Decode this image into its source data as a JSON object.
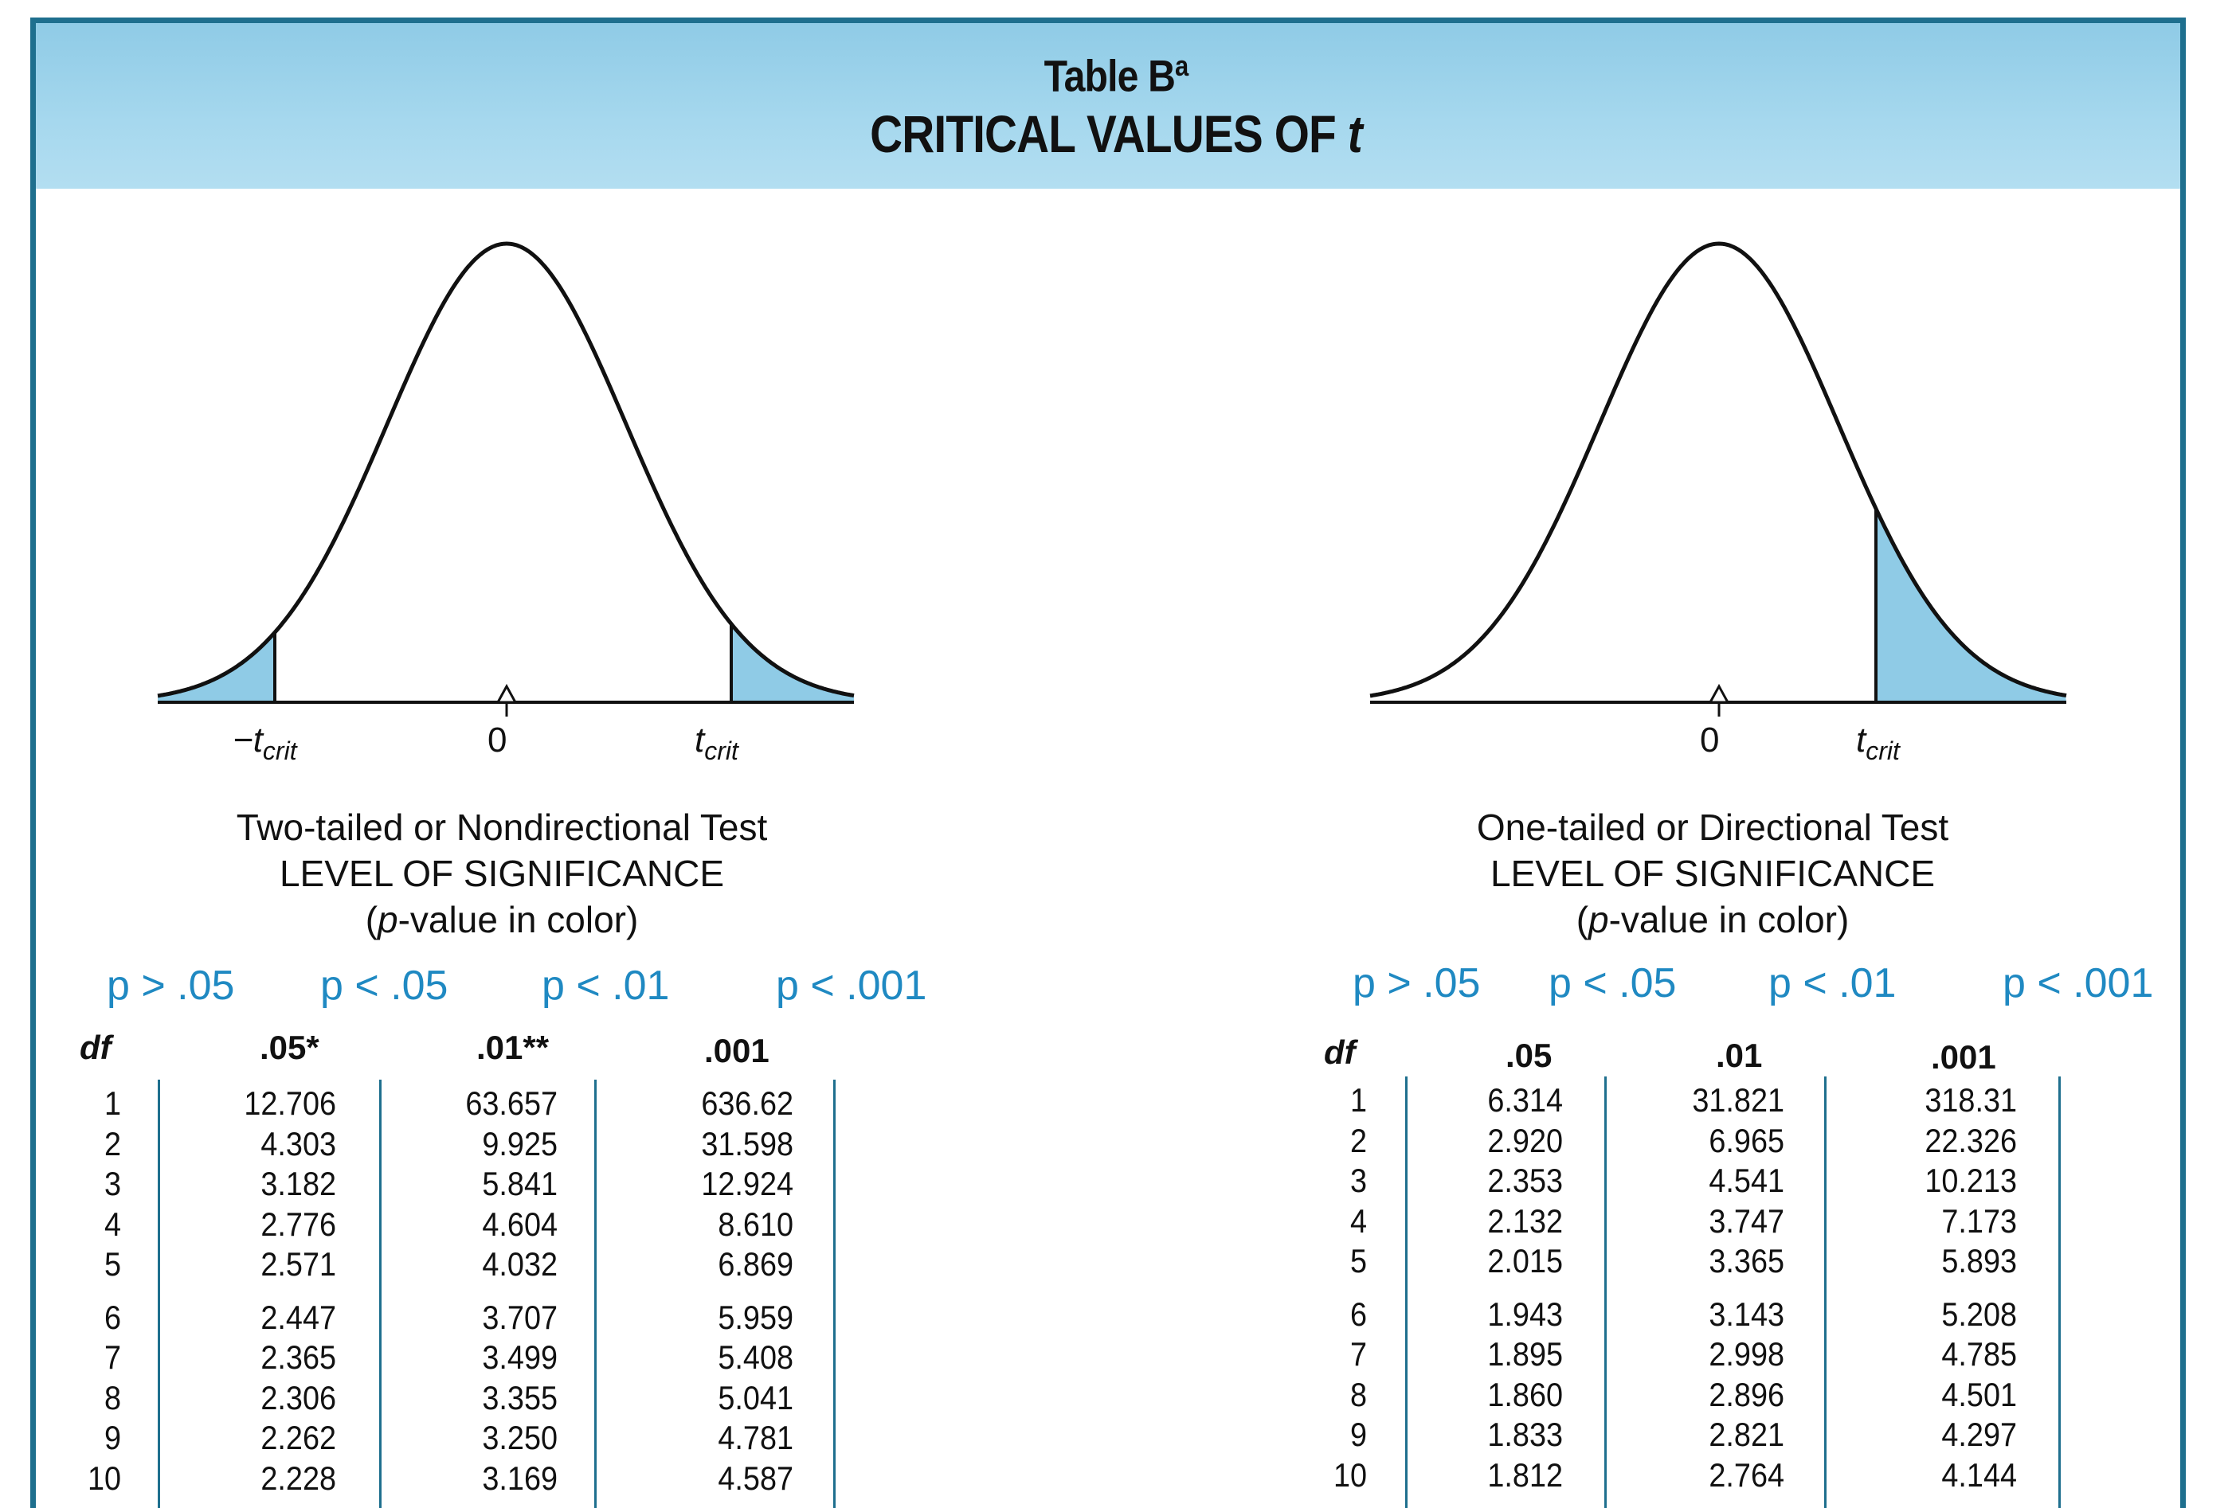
{
  "title": {
    "line1": "Table B",
    "line1_superscript": "a",
    "line2_main": "CRITICAL VALUES OF ",
    "line2_var": "t"
  },
  "left_panel": {
    "axis_labels": {
      "neg_tcrit_t": "−t",
      "neg_tcrit_sub": "crit",
      "zero": "0",
      "tcrit_t": "t",
      "tcrit_sub": "crit"
    },
    "caption": {
      "line1": "Two-tailed or Nondirectional Test",
      "line2": "LEVEL OF SIGNIFICANCE",
      "line3_p": "p",
      "line3_rest": "-value in color)",
      "line3_open": "("
    },
    "p_labels": [
      "p > .05",
      "p < .05",
      "p < .01",
      "p < .001"
    ],
    "headers": {
      "df": "df",
      "c1": ".05*",
      "c2": ".01**",
      "c3": ".001"
    },
    "rows": [
      [
        "1",
        "12.706",
        "63.657",
        "636.62"
      ],
      [
        "2",
        "4.303",
        "9.925",
        "31.598"
      ],
      [
        "3",
        "3.182",
        "5.841",
        "12.924"
      ],
      [
        "4",
        "2.776",
        "4.604",
        "8.610"
      ],
      [
        "5",
        "2.571",
        "4.032",
        "6.869"
      ],
      [
        "6",
        "2.447",
        "3.707",
        "5.959"
      ],
      [
        "7",
        "2.365",
        "3.499",
        "5.408"
      ],
      [
        "8",
        "2.306",
        "3.355",
        "5.041"
      ],
      [
        "9",
        "2.262",
        "3.250",
        "4.781"
      ],
      [
        "10",
        "2.228",
        "3.169",
        "4.587"
      ]
    ]
  },
  "right_panel": {
    "axis_labels": {
      "zero": "0",
      "tcrit_t": "t",
      "tcrit_sub": "crit"
    },
    "caption": {
      "line1": "One-tailed or Directional Test",
      "line2": "LEVEL OF SIGNIFICANCE",
      "line3_p": "p",
      "line3_rest": "-value in color)",
      "line3_open": "("
    },
    "p_labels": [
      "p > .05",
      "p < .05",
      "p < .01",
      "p < .001"
    ],
    "headers": {
      "df": "df",
      "c1": ".05",
      "c2": ".01",
      "c3": ".001"
    },
    "rows": [
      [
        "1",
        "6.314",
        "31.821",
        "318.31"
      ],
      [
        "2",
        "2.920",
        "6.965",
        "22.326"
      ],
      [
        "3",
        "2.353",
        "4.541",
        "10.213"
      ],
      [
        "4",
        "2.132",
        "3.747",
        "7.173"
      ],
      [
        "5",
        "2.015",
        "3.365",
        "5.893"
      ],
      [
        "6",
        "1.943",
        "3.143",
        "5.208"
      ],
      [
        "7",
        "1.895",
        "2.998",
        "4.785"
      ],
      [
        "8",
        "1.860",
        "2.896",
        "4.501"
      ],
      [
        "9",
        "1.833",
        "2.821",
        "4.297"
      ],
      [
        "10",
        "1.812",
        "2.764",
        "4.144"
      ]
    ]
  },
  "colors": {
    "accent": "#1e6f8e",
    "shade": "#8fcbe6",
    "pvalue": "#1f89c2"
  }
}
